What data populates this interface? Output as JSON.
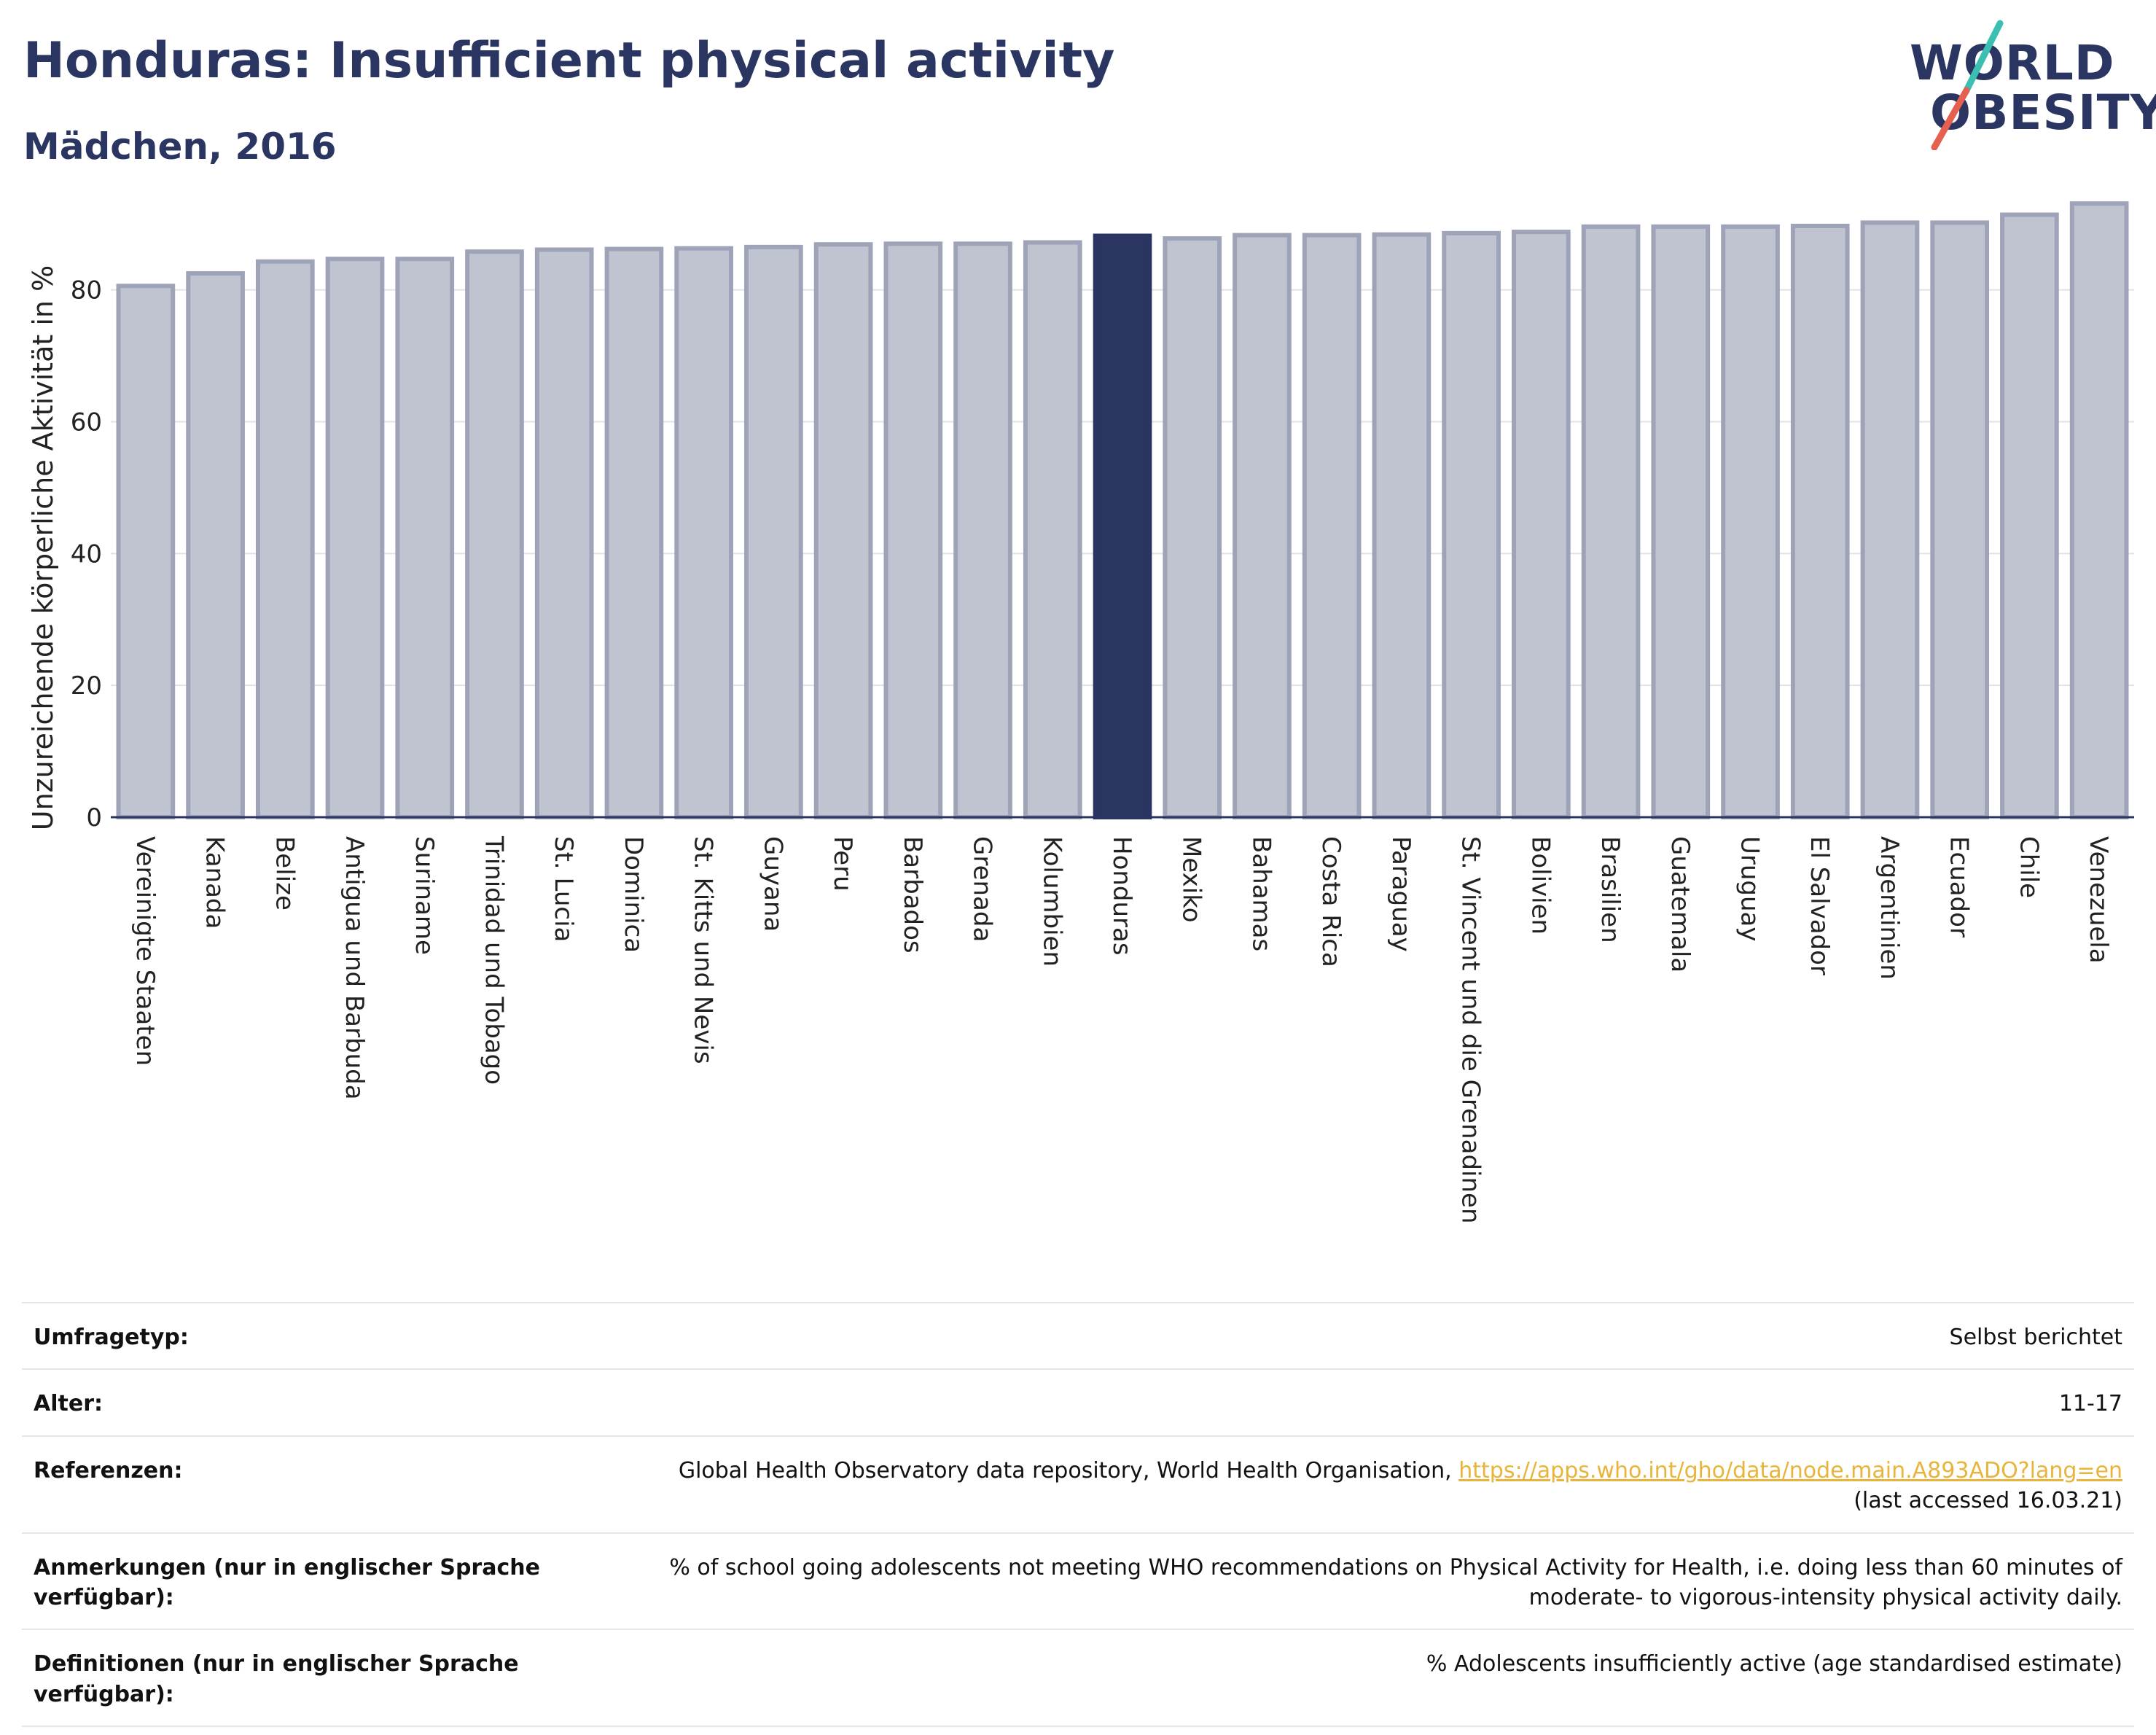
{
  "header": {
    "title": "Honduras: Insufficient physical activity",
    "subtitle": "Mädchen, 2016",
    "logo_line1": "WORLD",
    "logo_line2": "OBESITY"
  },
  "chart_data": {
    "type": "bar",
    "title": "Honduras: Insufficient physical activity",
    "subtitle": "Mädchen, 2016",
    "ylabel": "Unzureichende körperliche Aktivität in %",
    "xlabel": "",
    "ylim": [
      0,
      95
    ],
    "yticks": [
      0,
      20,
      40,
      60,
      80
    ],
    "grid": true,
    "highlight": "Honduras",
    "colors": {
      "bar": "#c0c3d0",
      "bar_border": "#9ea3b8",
      "highlight": "#2a3561"
    },
    "categories": [
      "Vereinigte Staaten",
      "Kanada",
      "Belize",
      "Antigua und Barbuda",
      "Suriname",
      "Trinidad und Tobago",
      "St. Lucia",
      "Dominica",
      "St. Kitts und Nevis",
      "Guyana",
      "Peru",
      "Barbados",
      "Grenada",
      "Kolumbien",
      "Honduras",
      "Mexiko",
      "Bahamas",
      "Costa Rica",
      "Paraguay",
      "St. Vincent und die Grenadinen",
      "Bolivien",
      "Brasilien",
      "Guatemala",
      "Uruguay",
      "El Salvador",
      "Argentinien",
      "Ecuador",
      "Chile",
      "Venezuela"
    ],
    "values": [
      80.6,
      82.5,
      84.3,
      84.7,
      84.7,
      85.8,
      86.1,
      86.2,
      86.3,
      86.5,
      86.9,
      87.0,
      87.0,
      87.2,
      88.2,
      87.8,
      88.3,
      88.3,
      88.4,
      88.6,
      88.8,
      89.6,
      89.6,
      89.6,
      89.7,
      90.2,
      90.2,
      91.4,
      93.1
    ]
  },
  "meta": {
    "survey_type": {
      "label": "Umfragetyp:",
      "value": "Selbst berichtet"
    },
    "age": {
      "label": "Alter:",
      "value": "11-17"
    },
    "references": {
      "label": "Referenzen:",
      "value": "Global Health Observatory data repository, World Health Organisation,",
      "link": "https://apps.who.int/gho/data/node.main.A893ADO?lang=en",
      "accessed": "(last accessed 16.03.21)"
    },
    "notes": {
      "label": "Anmerkungen (nur in englischer Sprache verfügbar):",
      "value": "% of school going adolescents not meeting WHO recommendations on Physical Activity for Health, i.e. doing less than 60 minutes of moderate- to vigorous-intensity physical activity daily."
    },
    "definitions": {
      "label": "Definitionen (nur in englischer Sprache verfügbar):",
      "value": "% Adolescents insufficiently active (age standardised estimate)"
    }
  }
}
